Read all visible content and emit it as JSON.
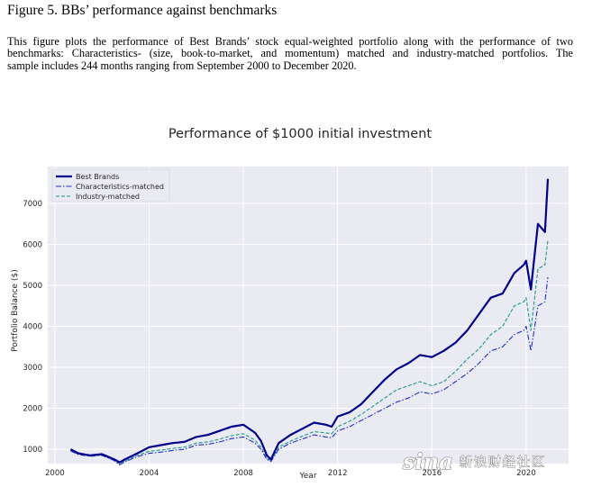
{
  "figure": {
    "title": "Figure 5. BBs’ performance against benchmarks",
    "caption_lines": [
      "This figure plots the performance of Best Brands’ stock equal-weighted portfolio along with the performance of two",
      "benchmarks: Characteristics- (size, book-to-market, and momentum) matched and industry-matched portfolios. The",
      "sample includes 244 months ranging from September 2000 to December 2020."
    ]
  },
  "watermark": {
    "logo": "sina",
    "text": "新浪财经社区"
  },
  "colors": {
    "plot_bg": "#eaeaf2",
    "best_brands": "#00008b",
    "characteristics": "#1f2fd0",
    "industry": "#1a9a8a",
    "grid": "#ffffff"
  },
  "chart_data": {
    "type": "line",
    "title": "Performance of $1000 initial investment",
    "xlabel": "Year",
    "ylabel": "Portfolio Balance ($)",
    "xlim": [
      1999.7,
      2021.8
    ],
    "ylim": [
      650,
      7900
    ],
    "x_ticks": [
      2000,
      2004,
      2008,
      2012,
      2016,
      2020
    ],
    "x_tick_labels": [
      "2000",
      "2004",
      "2008",
      "2012",
      "2016",
      "2020"
    ],
    "y_ticks": [
      1000,
      2000,
      3000,
      4000,
      5000,
      6000,
      7000
    ],
    "y_tick_labels": [
      "1000",
      "2000",
      "3000",
      "4000",
      "5000",
      "6000",
      "7000"
    ],
    "grid": true,
    "legend_position": "top-left",
    "x": [
      2000.67,
      2001.0,
      2001.5,
      2002.0,
      2002.5,
      2002.75,
      2003.0,
      2003.5,
      2004.0,
      2004.5,
      2005.0,
      2005.5,
      2006.0,
      2006.5,
      2007.0,
      2007.5,
      2008.0,
      2008.5,
      2008.75,
      2009.0,
      2009.17,
      2009.5,
      2010.0,
      2010.5,
      2011.0,
      2011.5,
      2011.75,
      2012.0,
      2012.5,
      2013.0,
      2013.5,
      2014.0,
      2014.5,
      2015.0,
      2015.5,
      2016.0,
      2016.5,
      2017.0,
      2017.5,
      2018.0,
      2018.5,
      2019.0,
      2019.5,
      2019.9,
      2020.0,
      2020.2,
      2020.5,
      2020.8,
      2020.92
    ],
    "series": [
      {
        "name": "Best Brands",
        "style": "solid",
        "values": [
          1000,
          900,
          850,
          880,
          760,
          680,
          760,
          900,
          1050,
          1100,
          1150,
          1180,
          1300,
          1350,
          1450,
          1550,
          1600,
          1400,
          1200,
          850,
          750,
          1150,
          1350,
          1500,
          1650,
          1600,
          1550,
          1800,
          1900,
          2100,
          2400,
          2700,
          2950,
          3100,
          3300,
          3250,
          3400,
          3600,
          3900,
          4300,
          4700,
          4800,
          5300,
          5500,
          5600,
          4900,
          6500,
          6300,
          7600
        ]
      },
      {
        "name": "Characteristics-matched",
        "style": "dashdot",
        "values": [
          960,
          870,
          830,
          850,
          730,
          620,
          700,
          820,
          900,
          930,
          970,
          1000,
          1100,
          1120,
          1180,
          1260,
          1300,
          1150,
          1000,
          750,
          700,
          1000,
          1150,
          1250,
          1350,
          1300,
          1280,
          1450,
          1550,
          1700,
          1850,
          2000,
          2150,
          2250,
          2400,
          2350,
          2450,
          2650,
          2850,
          3100,
          3400,
          3500,
          3800,
          3900,
          4000,
          3400,
          4500,
          4600,
          5200
        ]
      },
      {
        "name": "Industry-matched",
        "style": "dashed",
        "values": [
          970,
          880,
          840,
          860,
          740,
          640,
          720,
          850,
          950,
          980,
          1020,
          1050,
          1150,
          1180,
          1250,
          1330,
          1380,
          1220,
          1050,
          780,
          720,
          1050,
          1200,
          1320,
          1430,
          1400,
          1380,
          1550,
          1680,
          1850,
          2050,
          2250,
          2450,
          2550,
          2650,
          2550,
          2650,
          2900,
          3200,
          3450,
          3800,
          4000,
          4500,
          4600,
          4700,
          3900,
          5400,
          5500,
          6100
        ]
      }
    ]
  }
}
